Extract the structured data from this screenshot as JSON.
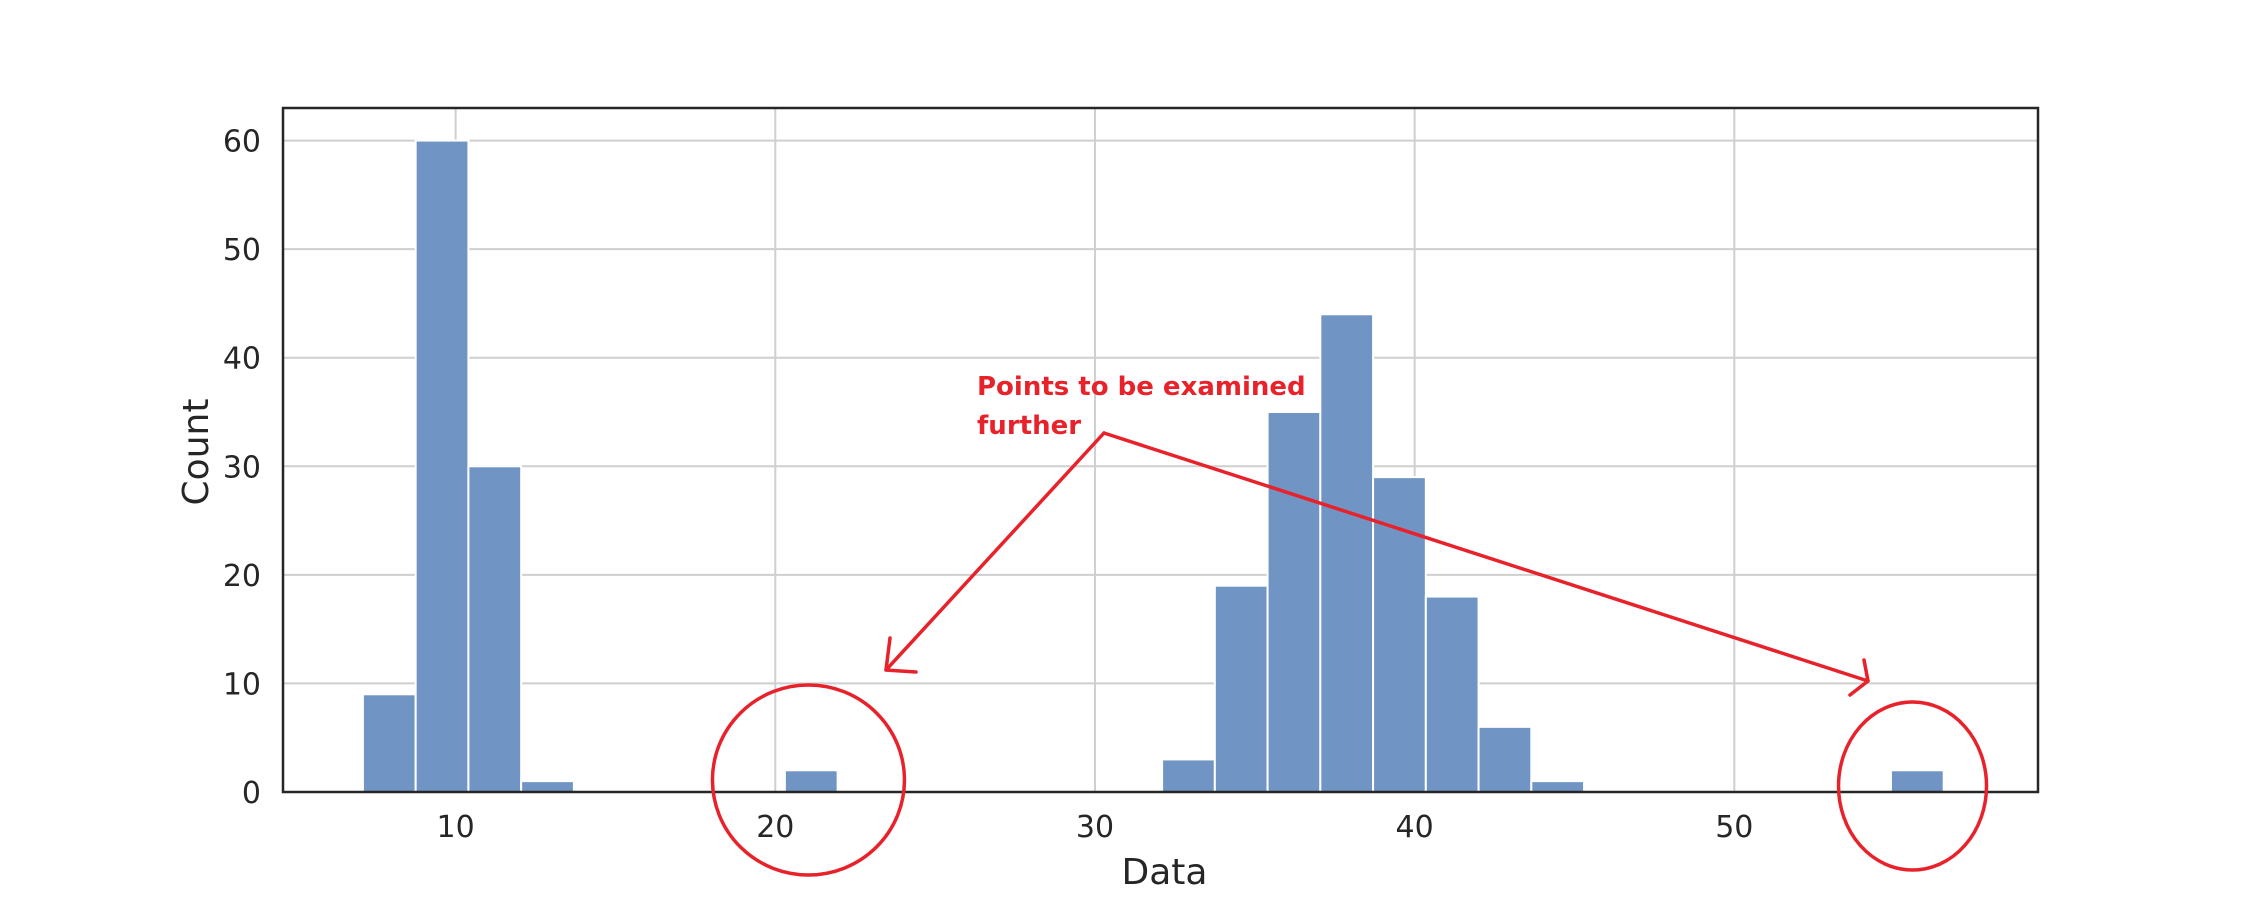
{
  "chart_data": {
    "type": "bar",
    "subtype": "histogram",
    "xlabel": "Data",
    "ylabel": "Count",
    "xlim": [
      4.6,
      59.5
    ],
    "ylim": [
      0,
      63
    ],
    "xticks": [
      10,
      20,
      30,
      40,
      50
    ],
    "yticks": [
      0,
      10,
      20,
      30,
      40,
      50,
      60
    ],
    "grid": true,
    "bin_width": 1.65,
    "bars": [
      {
        "x0": 7.1,
        "count": 9
      },
      {
        "x0": 8.75,
        "count": 60
      },
      {
        "x0": 10.4,
        "count": 30
      },
      {
        "x0": 12.05,
        "count": 1
      },
      {
        "x0": 20.3,
        "count": 2
      },
      {
        "x0": 32.1,
        "count": 3
      },
      {
        "x0": 33.75,
        "count": 19
      },
      {
        "x0": 35.4,
        "count": 35
      },
      {
        "x0": 37.05,
        "count": 44
      },
      {
        "x0": 38.7,
        "count": 29
      },
      {
        "x0": 40.35,
        "count": 18
      },
      {
        "x0": 42.0,
        "count": 6
      },
      {
        "x0": 43.65,
        "count": 1
      },
      {
        "x0": 54.9,
        "count": 2
      }
    ],
    "annotation": {
      "text_lines": [
        "Points to be examined",
        "further"
      ],
      "circled_bins_x": [
        21.1,
        55.7
      ]
    },
    "colors": {
      "bar": "#7094c4",
      "bar_edge": "#ffffff",
      "grid": "#cfcfcf",
      "frame": "#262626",
      "annotation": "#e8222b"
    }
  }
}
